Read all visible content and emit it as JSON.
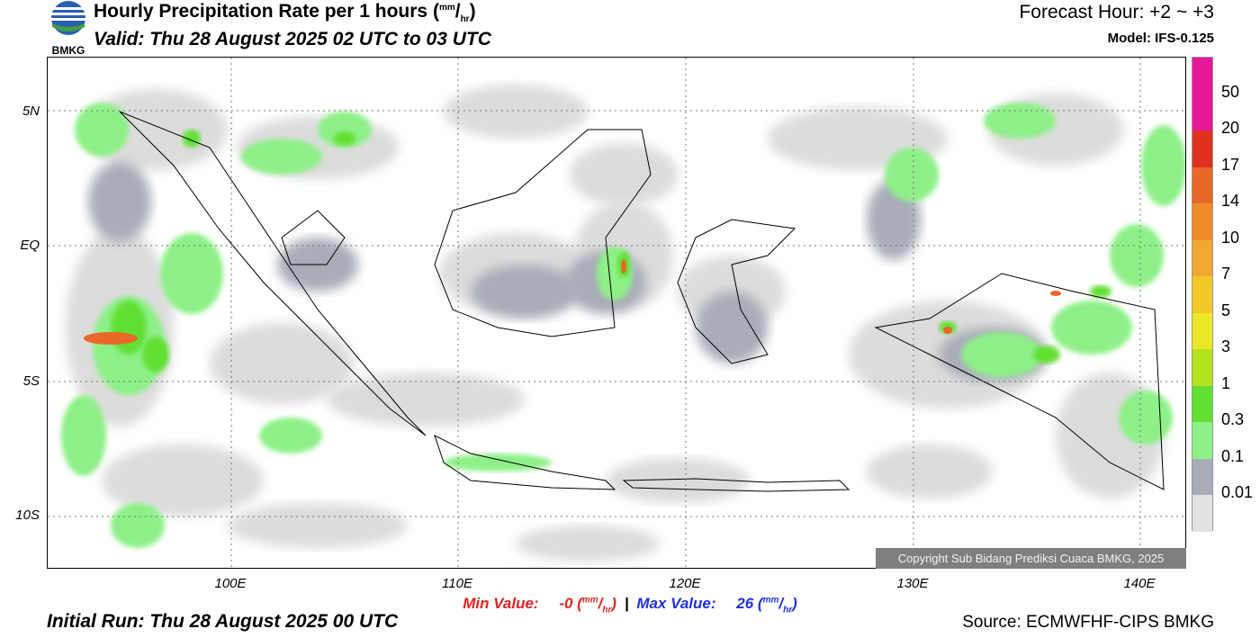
{
  "logo": {
    "text": "BMKG",
    "icon": "bmkg-logo"
  },
  "header": {
    "title": "Hourly Precipitation Rate per 1 hours",
    "unit_num": "mm",
    "unit_den": "hr",
    "valid": "Valid: Thu 28 August 2025 02 UTC to 03 UTC",
    "forecast_hour": "Forecast Hour: +2 ~ +3",
    "model": "Model: IFS-0.125"
  },
  "axes": {
    "lat_labels": [
      "5N",
      "EQ",
      "5S",
      "10S"
    ],
    "lon_labels": [
      "100E",
      "110E",
      "120E",
      "130E",
      "140E"
    ]
  },
  "legend": {
    "labels": [
      "50",
      "20",
      "17",
      "14",
      "10",
      "7",
      "5",
      "3",
      "1",
      "0.3",
      "0.1",
      "0.01"
    ],
    "colors": [
      "#e8189a",
      "#e03020",
      "#e8682a",
      "#f08c28",
      "#f0a830",
      "#f0c828",
      "#ece828",
      "#b4e21c",
      "#60e030",
      "#8ef088",
      "#a8adb8",
      "#e2e2e2"
    ]
  },
  "stats": {
    "min_label": "Min Value:",
    "min_value": "-0",
    "separator": "|",
    "max_label": "Max Value:",
    "max_value": "26"
  },
  "footer": {
    "initial_run": "Initial Run: Thu 28 August 2025 00 UTC",
    "source": "Source: ECMWFHF-CIPS BMKG",
    "copyright": "Copyright Sub Bidang Prediksi Cuaca BMKG, 2025"
  }
}
